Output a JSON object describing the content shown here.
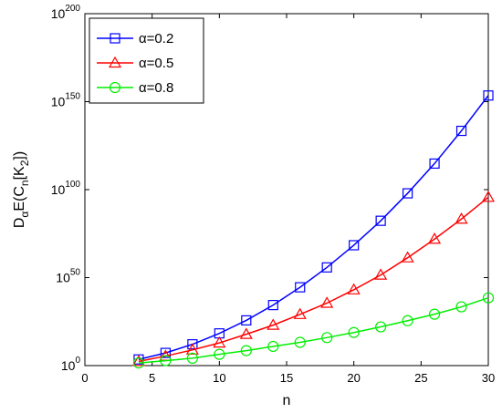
{
  "chart_data": {
    "type": "line",
    "title": "",
    "xlabel": "n",
    "ylabel": {
      "main": "D",
      "sub_alpha": "α",
      "mid": "E(C",
      "sub_n": "n",
      "mid2": "[K",
      "sub_2": "2",
      "end": "])"
    },
    "y_scale": "log10",
    "xlim": [
      0,
      30
    ],
    "ylim_exponent": [
      0,
      200
    ],
    "x_ticks": [
      0,
      5,
      10,
      15,
      20,
      25,
      30
    ],
    "x_tick_labels": [
      "0",
      "5",
      "10",
      "15",
      "20",
      "25",
      "30"
    ],
    "y_ticks_exponent": [
      0,
      50,
      100,
      150,
      200
    ],
    "y_tick_labels": [
      {
        "base": "10",
        "exp": "0"
      },
      {
        "base": "10",
        "exp": "50"
      },
      {
        "base": "10",
        "exp": "100"
      },
      {
        "base": "10",
        "exp": "150"
      },
      {
        "base": "10",
        "exp": "200"
      }
    ],
    "grid": false,
    "legend_position": "top-left",
    "x": [
      4,
      6,
      8,
      10,
      12,
      14,
      16,
      18,
      20,
      22,
      24,
      26,
      28,
      30
    ],
    "series": [
      {
        "name": "α=0.2",
        "color": "#0000ff",
        "marker": "square",
        "log10_values": [
          3.5,
          7.2,
          12.1,
          18.3,
          25.7,
          34.4,
          44.5,
          55.8,
          68.4,
          82.3,
          97.9,
          114.8,
          133.4,
          153.5
        ]
      },
      {
        "name": "α=0.5",
        "color": "#ff0000",
        "marker": "triangle",
        "log10_values": [
          2.4,
          5.4,
          8.9,
          12.9,
          17.8,
          23.0,
          29.1,
          35.5,
          43.1,
          51.5,
          61.3,
          71.9,
          83.3,
          95.7
        ]
      },
      {
        "name": "α=0.8",
        "color": "#00ee00",
        "marker": "circle",
        "log10_values": [
          1.5,
          2.8,
          4.2,
          6.4,
          8.5,
          10.9,
          13.2,
          15.9,
          18.8,
          22.0,
          25.5,
          29.2,
          33.4,
          38.5
        ]
      }
    ]
  }
}
